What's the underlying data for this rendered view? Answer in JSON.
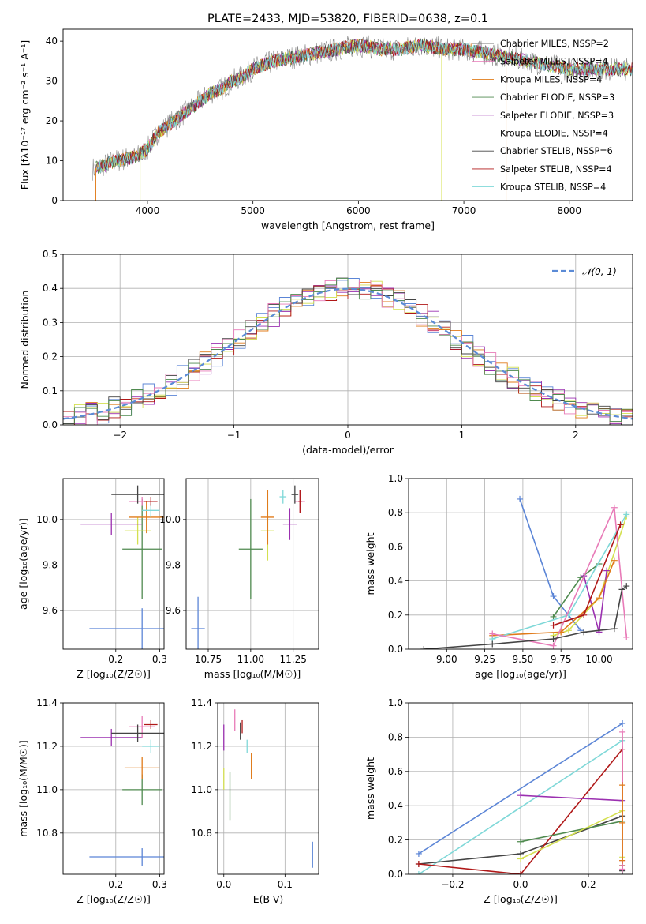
{
  "colors": {
    "chabrier_miles": "#777777",
    "salpeter_miles": "#e87bb8",
    "kroupa_miles": "#e07b1a",
    "chabrier_elodie": "#4f8a4f",
    "salpeter_elodie": "#9b30b0",
    "kroupa_elodie": "#d4e050",
    "chabrier_stelib": "#444444",
    "salpeter_stelib": "#b01818",
    "kroupa_stelib": "#7fd8d8",
    "blue": "#5b85d6"
  },
  "chart_data": [
    {
      "id": "spectrum",
      "type": "line",
      "title": "PLATE=2433, MJD=53820, FIBERID=0638, z=0.1",
      "xlabel": "wavelength [Angstrom, rest frame]",
      "ylabel": "Flux [fλ10⁻¹⁷ erg cm⁻² s⁻¹ A⁻¹]",
      "xlim": [
        3200,
        8600
      ],
      "ylim": [
        0,
        43
      ],
      "xticks": [
        "4000",
        "5000",
        "6000",
        "7000",
        "8000"
      ],
      "yticks": [
        "0",
        "10",
        "20",
        "30",
        "40"
      ],
      "x": [
        3500,
        3700,
        3900,
        4000,
        4100,
        4200,
        4300,
        4400,
        4500,
        4600,
        4700,
        4800,
        4900,
        5000,
        5200,
        5400,
        5600,
        5800,
        6000,
        6200,
        6400,
        6600,
        6800,
        7000,
        7200,
        7400,
        7600,
        7800,
        8000,
        8200
      ],
      "y": [
        8,
        10,
        11,
        13,
        17,
        19,
        21,
        23,
        25,
        27,
        28,
        30,
        31,
        33,
        35,
        36,
        37,
        38,
        39,
        38,
        38,
        39,
        38,
        38,
        37,
        36,
        35,
        34,
        33,
        33
      ],
      "legend": [
        "Chabrier MILES, NSSP=2",
        "Salpeter MILES, NSSP=4",
        "Kroupa MILES, NSSP=4",
        "Chabrier ELODIE, NSSP=3",
        "Salpeter ELODIE, NSSP=3",
        "Kroupa ELODIE, NSSP=4",
        "Chabrier STELIB, NSSP=6",
        "Salpeter STELIB, NSSP=4",
        "Kroupa STELIB, NSSP=4"
      ],
      "legend_position": "right",
      "grid": false
    },
    {
      "id": "residuals",
      "type": "line",
      "xlabel": "(data-model)/error",
      "ylabel": "Normed distribution",
      "xlim": [
        -2.5,
        2.5
      ],
      "ylim": [
        0,
        0.5
      ],
      "xticks": [
        "−2",
        "−1",
        "0",
        "1",
        "2"
      ],
      "yticks": [
        "0.0",
        "0.1",
        "0.2",
        "0.3",
        "0.4",
        "0.5"
      ],
      "legend": [
        "𝒩(0, 1)"
      ],
      "legend_position": "top-right",
      "grid": true
    },
    {
      "id": "age_vs_z",
      "type": "scatter",
      "xlabel": "Z [log₁₀(Z/Z☉)]",
      "ylabel": "age  [log₁₀(age/yr)]",
      "xlim": [
        0.08,
        0.31
      ],
      "ylim": [
        9.43,
        10.18
      ],
      "xticks": [
        "0.2",
        "0.3"
      ],
      "yticks": [
        "9.6",
        "9.8",
        "10.0"
      ],
      "grid": true,
      "points": [
        {
          "x": 0.26,
          "y": 9.52,
          "xerr": 0.12,
          "yerr": 0.09,
          "c": "blue"
        },
        {
          "x": 0.26,
          "y": 9.87,
          "xerr": 0.045,
          "yerr": 0.22,
          "c": "chabrier_elodie"
        },
        {
          "x": 0.25,
          "y": 9.95,
          "xerr": 0.03,
          "yerr": 0.06,
          "c": "kroupa_elodie"
        },
        {
          "x": 0.19,
          "y": 9.98,
          "xerr": 0.07,
          "yerr": 0.05,
          "c": "salpeter_elodie"
        },
        {
          "x": 0.27,
          "y": 10.01,
          "xerr": 0.04,
          "yerr": 0.07,
          "c": "kroupa_miles"
        },
        {
          "x": 0.28,
          "y": 10.04,
          "xerr": 0.02,
          "yerr": 0.03,
          "c": "kroupa_stelib"
        },
        {
          "x": 0.26,
          "y": 10.08,
          "xerr": 0.03,
          "yerr": 0.02,
          "c": "salpeter_miles"
        },
        {
          "x": 0.28,
          "y": 10.08,
          "xerr": 0.015,
          "yerr": 0.02,
          "c": "salpeter_stelib"
        },
        {
          "x": 0.25,
          "y": 10.11,
          "xerr": 0.06,
          "yerr": 0.04,
          "c": "chabrier_stelib"
        }
      ]
    },
    {
      "id": "age_vs_mass",
      "type": "scatter",
      "xlabel": "mass [log₁₀(M/M☉)]",
      "ylabel": "",
      "xlim": [
        10.62,
        11.4
      ],
      "ylim": [
        9.43,
        10.18
      ],
      "xticks": [
        "10.75",
        "11.00",
        "11.25"
      ],
      "yticks": [
        "9.6",
        "9.8",
        "10.0"
      ],
      "grid": true,
      "points": [
        {
          "x": 10.69,
          "y": 9.52,
          "xerr": 0.04,
          "yerr": 0.14,
          "c": "blue"
        },
        {
          "x": 11.0,
          "y": 9.87,
          "xerr": 0.07,
          "yerr": 0.22,
          "c": "chabrier_elodie"
        },
        {
          "x": 11.1,
          "y": 9.95,
          "xerr": 0.04,
          "yerr": 0.13,
          "c": "kroupa_elodie"
        },
        {
          "x": 11.23,
          "y": 9.98,
          "xerr": 0.04,
          "yerr": 0.07,
          "c": "salpeter_elodie"
        },
        {
          "x": 11.1,
          "y": 10.01,
          "xerr": 0.04,
          "yerr": 0.12,
          "c": "kroupa_miles"
        },
        {
          "x": 11.19,
          "y": 10.1,
          "xerr": 0.02,
          "yerr": 0.03,
          "c": "kroupa_stelib"
        },
        {
          "x": 11.29,
          "y": 10.08,
          "xerr": 0.03,
          "yerr": 0.05,
          "c": "salpeter_miles"
        },
        {
          "x": 11.29,
          "y": 10.08,
          "xerr": 0.01,
          "yerr": 0.05,
          "c": "salpeter_stelib"
        },
        {
          "x": 11.26,
          "y": 10.11,
          "xerr": 0.02,
          "yerr": 0.04,
          "c": "chabrier_stelib"
        }
      ]
    },
    {
      "id": "weight_vs_age",
      "type": "line",
      "xlabel": "age  [log₁₀(age/yr)]",
      "ylabel": "mass weight",
      "xlim": [
        8.75,
        10.22
      ],
      "ylim": [
        0,
        1
      ],
      "xticks": [
        "9.00",
        "9.25",
        "9.50",
        "9.75",
        "10.00"
      ],
      "yticks": [
        "0.0",
        "0.2",
        "0.4",
        "0.6",
        "0.8",
        "1.0"
      ],
      "grid": true,
      "series": [
        {
          "c": "blue",
          "x": [
            9.48,
            9.7,
            9.88
          ],
          "y": [
            0.88,
            0.31,
            0.11
          ]
        },
        {
          "c": "chabrier_elodie",
          "x": [
            9.7,
            9.88,
            10.0
          ],
          "y": [
            0.19,
            0.42,
            0.5
          ]
        },
        {
          "c": "kroupa_elodie",
          "x": [
            9.7,
            9.8,
            10.0,
            10.18
          ],
          "y": [
            0.08,
            0.11,
            0.3,
            0.78
          ]
        },
        {
          "c": "salpeter_elodie",
          "x": [
            9.9,
            10.0,
            10.05
          ],
          "y": [
            0.43,
            0.1,
            0.46
          ]
        },
        {
          "c": "kroupa_miles",
          "x": [
            9.3,
            9.75,
            10.0,
            10.1
          ],
          "y": [
            0.08,
            0.1,
            0.3,
            0.52
          ]
        },
        {
          "c": "kroupa_stelib",
          "x": [
            9.3,
            9.8,
            10.18
          ],
          "y": [
            0.06,
            0.2,
            0.79
          ]
        },
        {
          "c": "salpeter_miles",
          "x": [
            9.3,
            9.7,
            10.1,
            10.18
          ],
          "y": [
            0.09,
            0.02,
            0.83,
            0.07
          ]
        },
        {
          "c": "salpeter_stelib",
          "x": [
            9.7,
            9.9,
            10.14
          ],
          "y": [
            0.14,
            0.2,
            0.73
          ]
        },
        {
          "c": "chabrier_stelib",
          "x": [
            8.85,
            9.3,
            9.7,
            9.9,
            10.1,
            10.15,
            10.18
          ],
          "y": [
            0.0,
            0.03,
            0.06,
            0.1,
            0.12,
            0.35,
            0.37
          ]
        }
      ]
    },
    {
      "id": "mass_vs_z",
      "type": "scatter",
      "xlabel": "Z [log₁₀(Z/Z☉)]",
      "ylabel": "mass [log₁₀(M/M☉)]",
      "xlim": [
        0.08,
        0.31
      ],
      "ylim": [
        10.61,
        11.4
      ],
      "xticks": [
        "0.2",
        "0.3"
      ],
      "yticks": [
        "10.8",
        "11.0",
        "11.2",
        "11.4"
      ],
      "grid": true,
      "points": [
        {
          "x": 0.26,
          "y": 10.69,
          "xerr": 0.12,
          "yerr": 0.04,
          "c": "blue"
        },
        {
          "x": 0.26,
          "y": 11.0,
          "xerr": 0.045,
          "yerr": 0.07,
          "c": "chabrier_elodie"
        },
        {
          "x": 0.26,
          "y": 11.1,
          "xerr": 0.04,
          "yerr": 0.05,
          "c": "kroupa_miles"
        },
        {
          "x": 0.19,
          "y": 11.24,
          "xerr": 0.07,
          "yerr": 0.04,
          "c": "salpeter_elodie"
        },
        {
          "x": 0.28,
          "y": 11.2,
          "xerr": 0.02,
          "yerr": 0.03,
          "c": "kroupa_stelib"
        },
        {
          "x": 0.26,
          "y": 11.29,
          "xerr": 0.03,
          "yerr": 0.05,
          "c": "salpeter_miles"
        },
        {
          "x": 0.28,
          "y": 11.3,
          "xerr": 0.015,
          "yerr": 0.02,
          "c": "salpeter_stelib"
        },
        {
          "x": 0.25,
          "y": 11.26,
          "xerr": 0.06,
          "yerr": 0.04,
          "c": "chabrier_stelib"
        }
      ]
    },
    {
      "id": "mass_vs_ebv",
      "type": "scatter",
      "xlabel": "E(B-V)",
      "ylabel": "",
      "xlim": [
        -0.01,
        0.155
      ],
      "ylim": [
        10.61,
        11.4
      ],
      "xticks": [
        "0.0",
        "0.1"
      ],
      "yticks": [
        "10.8",
        "11.0",
        "11.2",
        "11.4"
      ],
      "grid": true,
      "points": [
        {
          "x": 0.145,
          "y": 10.7,
          "yerr": 0.06,
          "c": "blue"
        },
        {
          "x": 0.01,
          "y": 10.97,
          "yerr": 0.11,
          "c": "chabrier_elodie"
        },
        {
          "x": 0.0,
          "y": 11.05,
          "yerr": 0.05,
          "c": "kroupa_elodie"
        },
        {
          "x": 0.045,
          "y": 11.11,
          "yerr": 0.06,
          "c": "kroupa_miles"
        },
        {
          "x": 0.0,
          "y": 11.24,
          "yerr": 0.06,
          "c": "salpeter_elodie"
        },
        {
          "x": 0.038,
          "y": 11.2,
          "yerr": 0.03,
          "c": "kroupa_stelib"
        },
        {
          "x": 0.018,
          "y": 11.32,
          "yerr": 0.05,
          "c": "salpeter_miles"
        },
        {
          "x": 0.03,
          "y": 11.29,
          "yerr": 0.03,
          "c": "salpeter_stelib"
        },
        {
          "x": 0.027,
          "y": 11.27,
          "yerr": 0.04,
          "c": "chabrier_stelib"
        }
      ]
    },
    {
      "id": "weight_vs_z",
      "type": "line",
      "xlabel": "Z [log₁₀(Z/Z☉)]",
      "ylabel": "mass weight",
      "xlim": [
        -0.33,
        0.33
      ],
      "ylim": [
        0,
        1
      ],
      "xticks": [
        "−0.2",
        "0.0",
        "0.2"
      ],
      "yticks": [
        "0.0",
        "0.2",
        "0.4",
        "0.6",
        "0.8",
        "1.0"
      ],
      "grid": true,
      "series": [
        {
          "c": "blue",
          "x": [
            -0.3,
            0.3
          ],
          "y": [
            0.12,
            0.88
          ]
        },
        {
          "c": "kroupa_stelib",
          "x": [
            -0.3,
            0.3
          ],
          "y": [
            0.0,
            0.78
          ]
        },
        {
          "c": "chabrier_stelib",
          "x": [
            -0.3,
            0.0,
            0.3,
            0.3
          ],
          "y": [
            0.06,
            0.12,
            0.34,
            0.02
          ]
        },
        {
          "c": "salpeter_stelib",
          "x": [
            -0.3,
            0.0,
            0.3,
            0.3
          ],
          "y": [
            0.06,
            0.0,
            0.73,
            0.05
          ]
        },
        {
          "c": "salpeter_elodie",
          "x": [
            0.0,
            0.3
          ],
          "y": [
            0.46,
            0.43
          ]
        },
        {
          "c": "chabrier_elodie",
          "x": [
            0.0,
            0.3
          ],
          "y": [
            0.19,
            0.31
          ]
        },
        {
          "c": "kroupa_elodie",
          "x": [
            0.0,
            0.3,
            0.3
          ],
          "y": [
            0.09,
            0.37,
            0.1
          ]
        },
        {
          "c": "salpeter_miles",
          "x": [
            0.3,
            0.3,
            0.3
          ],
          "y": [
            0.83,
            0.08,
            0.03
          ]
        },
        {
          "c": "kroupa_miles",
          "x": [
            0.3,
            0.3,
            0.3
          ],
          "y": [
            0.52,
            0.3,
            0.08
          ]
        }
      ]
    }
  ]
}
